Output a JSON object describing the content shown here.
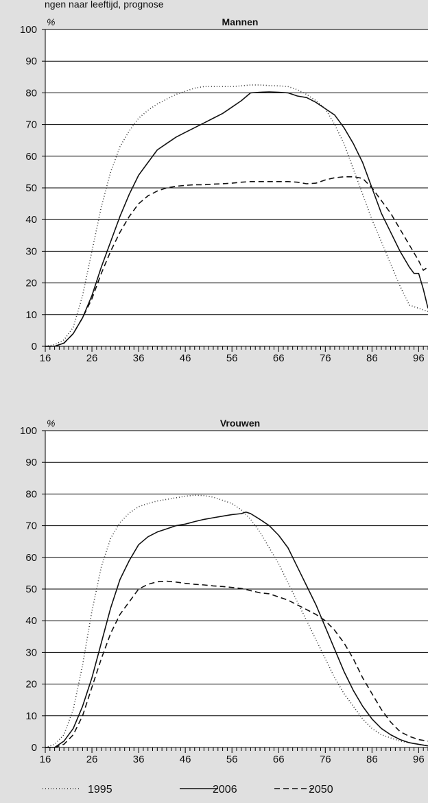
{
  "header": {
    "text": "ngen naar leeftijd, prognose"
  },
  "legend": [
    {
      "label": "1995",
      "dash": "1,3",
      "color": "#333333"
    },
    {
      "label": "2006",
      "dash": "",
      "color": "#111111"
    },
    {
      "label": "2050",
      "dash": "8,5",
      "color": "#111111"
    }
  ],
  "chart_data": [
    {
      "type": "line",
      "title": "Mannen",
      "ylabel": "%",
      "xlim": [
        16,
        98
      ],
      "ylim": [
        0,
        100
      ],
      "xticks": [
        16,
        26,
        36,
        46,
        56,
        66,
        76,
        86,
        96
      ],
      "yticks": [
        0,
        10,
        20,
        30,
        40,
        50,
        60,
        70,
        80,
        90,
        100
      ],
      "grid": true,
      "series": [
        {
          "name": "1995",
          "x": [
            16,
            18,
            20,
            22,
            24,
            26,
            28,
            30,
            32,
            34,
            36,
            38,
            40,
            42,
            44,
            46,
            48,
            50,
            52,
            54,
            56,
            58,
            60,
            62,
            64,
            66,
            68,
            70,
            72,
            74,
            76,
            78,
            80,
            82,
            84,
            86,
            88,
            90,
            92,
            94,
            96,
            98
          ],
          "y": [
            0,
            0.5,
            2,
            6,
            16,
            30,
            44,
            55,
            63,
            68,
            72,
            74.5,
            76.5,
            78,
            79.5,
            80.5,
            81.5,
            82,
            82,
            82,
            82,
            82.2,
            82.5,
            82.5,
            82.3,
            82.2,
            82,
            81,
            79.5,
            77.5,
            75,
            70,
            64,
            56,
            48,
            40,
            33,
            26,
            19,
            13,
            12,
            11
          ]
        },
        {
          "name": "2006",
          "x": [
            16,
            18,
            20,
            22,
            24,
            26,
            28,
            30,
            32,
            34,
            36,
            38,
            40,
            42,
            44,
            46,
            48,
            50,
            52,
            54,
            56,
            58,
            60,
            62,
            64,
            66,
            68,
            70,
            72,
            74,
            76,
            78,
            80,
            82,
            84,
            86,
            88,
            90,
            92,
            94,
            95,
            96,
            97,
            98
          ],
          "y": [
            0,
            0,
            1,
            4,
            9,
            16,
            25,
            33,
            41,
            48,
            54,
            58,
            62,
            64,
            66,
            67.5,
            69,
            70.5,
            72,
            73.5,
            75.5,
            77.5,
            80,
            80.2,
            80.3,
            80.2,
            80,
            79,
            78.5,
            77,
            75,
            73,
            69,
            64,
            58,
            50,
            42,
            36,
            30,
            25,
            23,
            23,
            18,
            12
          ]
        },
        {
          "name": "2050",
          "x": [
            16,
            18,
            20,
            22,
            24,
            26,
            28,
            30,
            32,
            34,
            36,
            38,
            40,
            42,
            44,
            46,
            48,
            50,
            52,
            54,
            56,
            58,
            60,
            62,
            64,
            66,
            68,
            70,
            72,
            74,
            76,
            78,
            80,
            82,
            84,
            86,
            88,
            90,
            92,
            94,
            96,
            97,
            98
          ],
          "y": [
            0,
            0,
            1,
            4,
            9,
            15,
            23,
            30,
            36,
            41,
            45,
            47.5,
            49,
            50,
            50.5,
            50.8,
            51,
            51,
            51.2,
            51.3,
            51.5,
            51.8,
            52,
            52,
            52,
            52,
            52,
            51.8,
            51.3,
            51.5,
            52.5,
            53.2,
            53.5,
            53.5,
            53,
            50,
            46,
            42,
            37,
            32,
            27,
            24,
            25
          ]
        }
      ]
    },
    {
      "type": "line",
      "title": "Vrouwen",
      "ylabel": "%",
      "xlim": [
        16,
        98
      ],
      "ylim": [
        0,
        100
      ],
      "xticks": [
        16,
        26,
        36,
        46,
        56,
        66,
        76,
        86,
        96
      ],
      "yticks": [
        0,
        10,
        20,
        30,
        40,
        50,
        60,
        70,
        80,
        90,
        100
      ],
      "grid": true,
      "series": [
        {
          "name": "1995",
          "x": [
            16,
            18,
            20,
            22,
            24,
            26,
            28,
            30,
            32,
            34,
            36,
            38,
            40,
            42,
            44,
            46,
            48,
            50,
            52,
            54,
            56,
            58,
            60,
            62,
            64,
            66,
            68,
            70,
            72,
            74,
            76,
            78,
            80,
            82,
            84,
            86,
            88,
            90,
            92,
            94,
            96,
            98
          ],
          "y": [
            0,
            1,
            4,
            12,
            26,
            43,
            57,
            66,
            71,
            74,
            76,
            77,
            77.8,
            78.3,
            78.8,
            79.3,
            79.6,
            79.5,
            79,
            78,
            77,
            75,
            72,
            68,
            63,
            58,
            52,
            46,
            40,
            34,
            28,
            22,
            17,
            13,
            9,
            6,
            4,
            3,
            2,
            1.5,
            1,
            0.5
          ]
        },
        {
          "name": "2006",
          "x": [
            16,
            18,
            20,
            22,
            24,
            26,
            28,
            30,
            32,
            34,
            36,
            38,
            40,
            42,
            44,
            46,
            48,
            50,
            52,
            54,
            56,
            58,
            59,
            60,
            62,
            64,
            66,
            68,
            70,
            72,
            74,
            76,
            78,
            80,
            82,
            84,
            86,
            88,
            90,
            92,
            94,
            96,
            98
          ],
          "y": [
            0,
            0,
            2,
            6,
            13,
            22,
            33,
            44,
            53,
            59,
            64,
            66.5,
            68,
            69,
            70,
            70.5,
            71.3,
            72,
            72.5,
            73,
            73.5,
            73.8,
            74.3,
            73.8,
            72,
            70,
            67,
            63,
            57,
            51,
            45,
            38,
            31,
            24,
            18,
            13,
            9,
            6,
            4,
            2.5,
            1.5,
            1,
            0.5
          ]
        },
        {
          "name": "2050",
          "x": [
            16,
            18,
            20,
            22,
            24,
            26,
            28,
            30,
            32,
            34,
            36,
            38,
            40,
            42,
            44,
            46,
            48,
            50,
            52,
            54,
            56,
            58,
            60,
            62,
            64,
            66,
            68,
            70,
            72,
            74,
            76,
            78,
            80,
            82,
            84,
            86,
            88,
            90,
            92,
            94,
            96,
            98
          ],
          "y": [
            0,
            0,
            1,
            4,
            10,
            19,
            28,
            36,
            42,
            46,
            50,
            51.5,
            52.3,
            52.5,
            52.2,
            51.8,
            51.5,
            51.3,
            51,
            50.8,
            50.5,
            50.2,
            49.5,
            48.8,
            48.5,
            47.5,
            46.5,
            45,
            43.5,
            42,
            40,
            37,
            33,
            28,
            22,
            17,
            12,
            8,
            5,
            3.5,
            2.5,
            2
          ]
        }
      ]
    }
  ]
}
